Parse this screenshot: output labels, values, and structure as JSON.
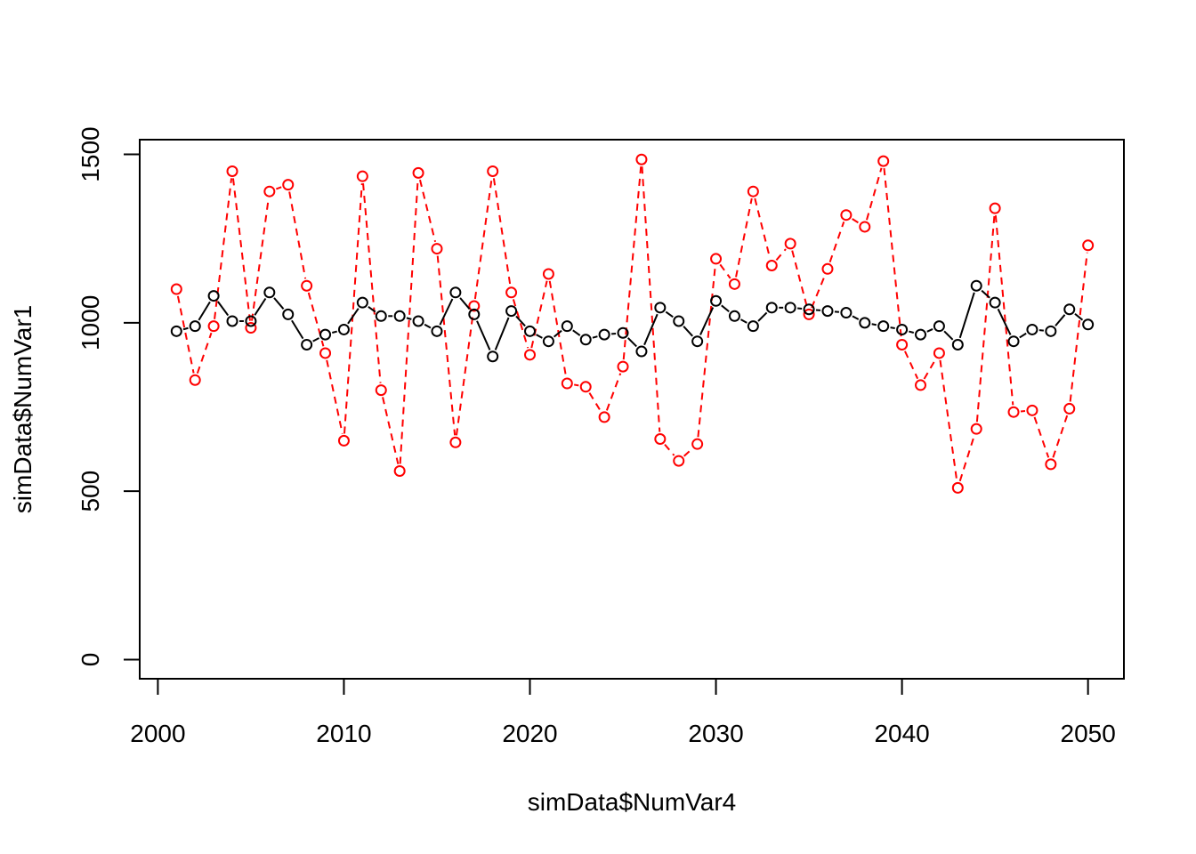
{
  "chart_data": {
    "type": "line",
    "title": "",
    "xlabel": "simData$NumVar4",
    "ylabel": "simData$NumVar1",
    "xlim": [
      2000,
      2050
    ],
    "ylim": [
      0,
      1500
    ],
    "x_ticks": [
      "2000",
      "2010",
      "2020",
      "2030",
      "2040",
      "2050"
    ],
    "y_ticks": [
      "0",
      "500",
      "1000",
      "1500"
    ],
    "grid": false,
    "legend": "none",
    "x": [
      2001,
      2002,
      2003,
      2004,
      2005,
      2006,
      2007,
      2008,
      2009,
      2010,
      2011,
      2012,
      2013,
      2014,
      2015,
      2016,
      2017,
      2018,
      2019,
      2020,
      2021,
      2022,
      2023,
      2024,
      2025,
      2026,
      2027,
      2028,
      2029,
      2030,
      2031,
      2032,
      2033,
      2034,
      2035,
      2036,
      2037,
      2038,
      2039,
      2040,
      2041,
      2042,
      2043,
      2044,
      2045,
      2046,
      2047,
      2048,
      2049,
      2050
    ],
    "series": [
      {
        "color": "#000000",
        "line_style": "solid",
        "marker": "open-circle",
        "values": [
          975,
          990,
          1080,
          1005,
          1005,
          1090,
          1025,
          935,
          965,
          980,
          1060,
          1020,
          1020,
          1005,
          975,
          1090,
          1025,
          900,
          1035,
          975,
          945,
          990,
          950,
          965,
          970,
          915,
          1045,
          1005,
          945,
          1065,
          1020,
          990,
          1045,
          1045,
          1040,
          1035,
          1030,
          1000,
          990,
          980,
          965,
          990,
          935,
          1110,
          1060,
          945,
          980,
          975,
          1040,
          995
        ]
      },
      {
        "color": "#ff0000",
        "line_style": "dashed",
        "marker": "open-circle",
        "values": [
          1100,
          830,
          990,
          1450,
          985,
          1390,
          1410,
          1110,
          910,
          650,
          1435,
          800,
          560,
          1445,
          1220,
          645,
          1050,
          1450,
          1090,
          905,
          1145,
          820,
          810,
          720,
          870,
          1485,
          655,
          590,
          640,
          1190,
          1115,
          1390,
          1170,
          1235,
          1025,
          1160,
          1320,
          1285,
          1480,
          935,
          815,
          910,
          510,
          685,
          1340,
          735,
          740,
          580,
          745,
          1230
        ]
      }
    ]
  }
}
